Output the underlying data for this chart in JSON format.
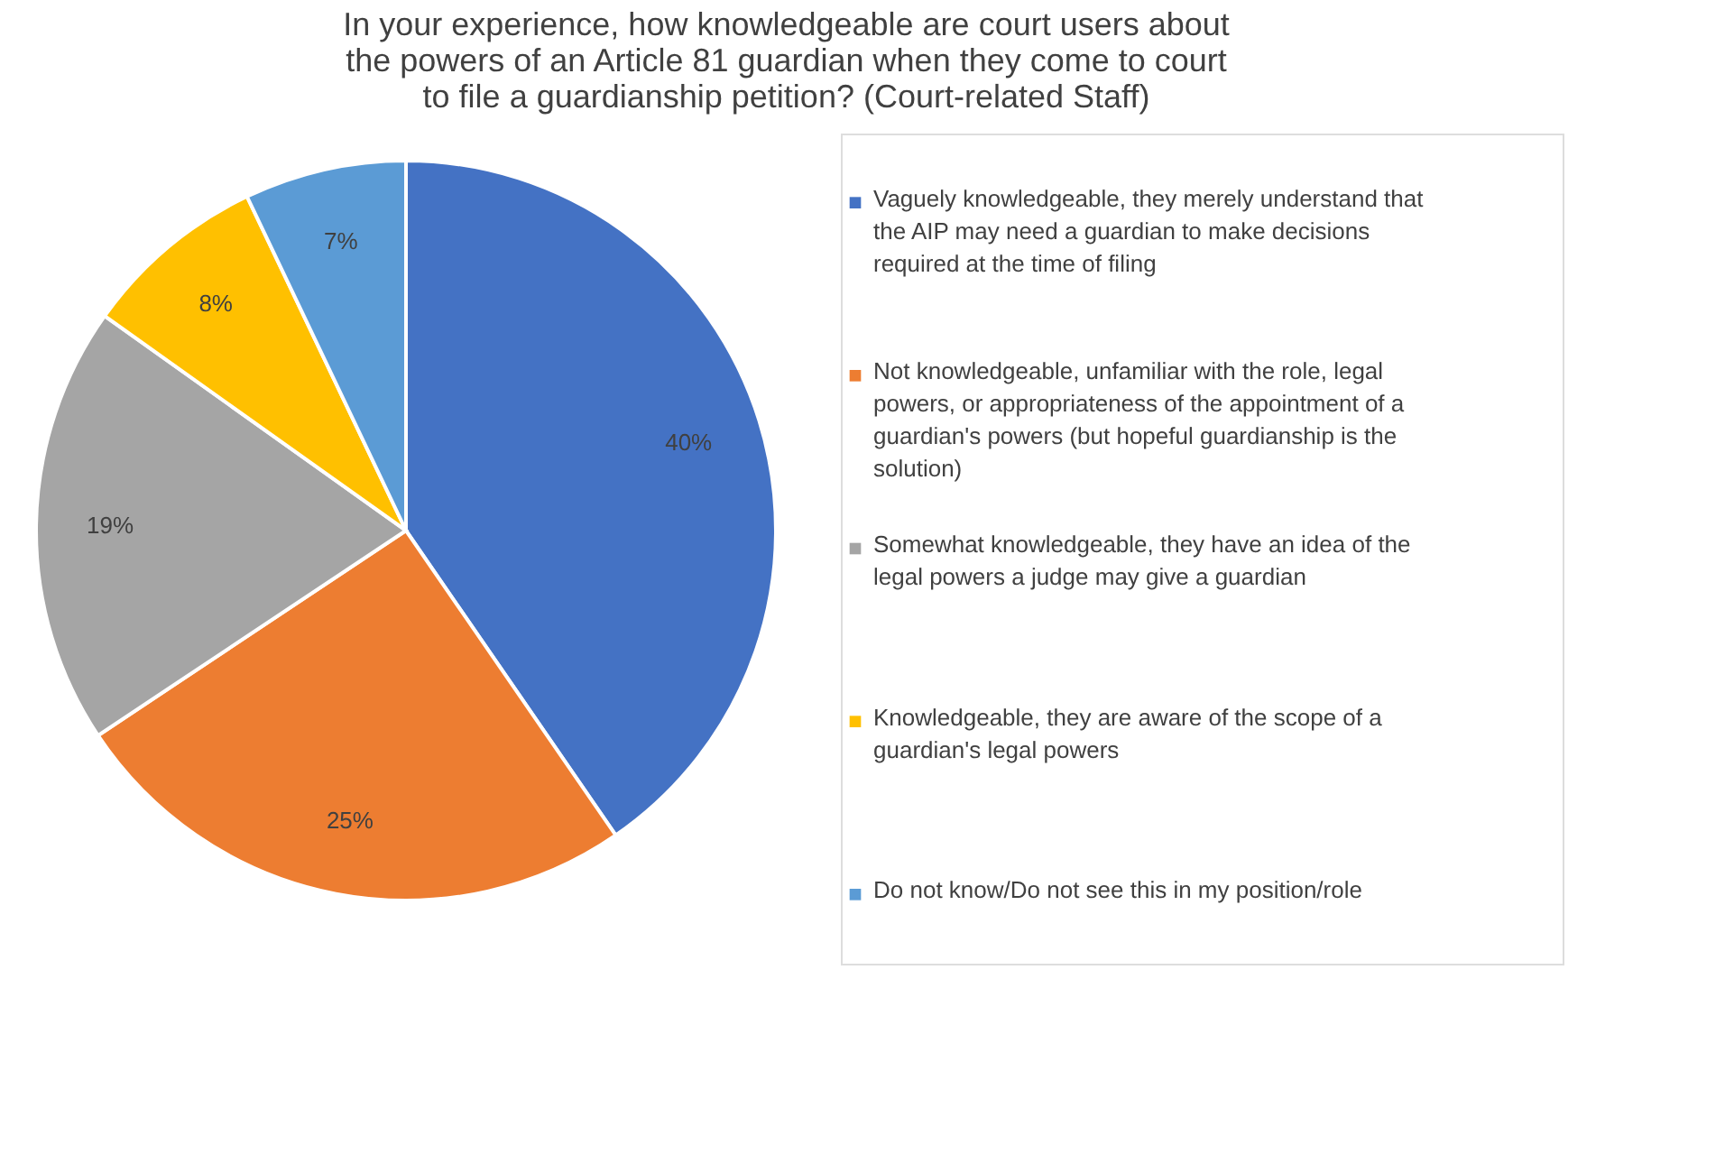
{
  "chart_data": {
    "type": "pie",
    "title": "In your experience, how knowledgeable are court users about the powers of an Article 81 guardian when they come to court to file a guardianship petition? (Court-related Staff)",
    "categories": [
      "Vaguely knowledgeable, they merely understand that the AIP may need a guardian to make decisions required at the time of filing",
      "Not knowledgeable, unfamiliar with the role, legal powers, or appropriateness of the appointment of a guardian's powers (but hopeful guardianship is the solution)",
      "Somewhat knowledgeable, they have an idea of the legal powers a judge may give a guardian",
      "Knowledgeable, they are aware of the scope of a guardian's legal powers",
      "Do not know/Do not see this in my position/role"
    ],
    "values": [
      40,
      25,
      19,
      8,
      7
    ],
    "colors": [
      "#4472c4",
      "#ed7d31",
      "#a5a5a5",
      "#ffc000",
      "#5b9bd5"
    ],
    "value_labels": [
      "40%",
      "25%",
      "19%",
      "8%",
      "7%"
    ],
    "legend": "right"
  }
}
